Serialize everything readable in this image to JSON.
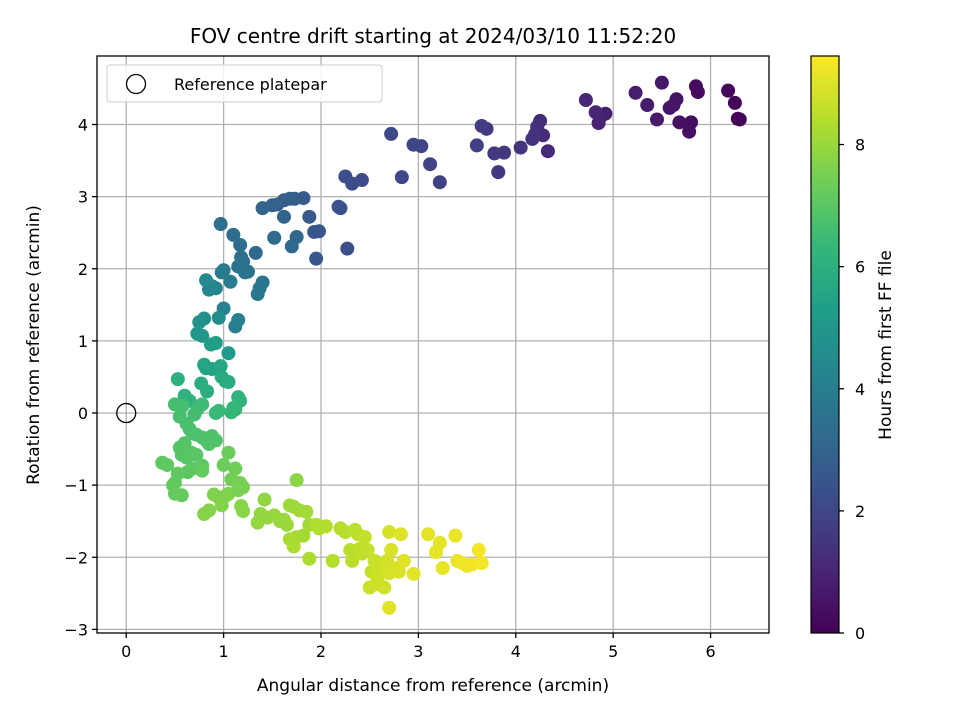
{
  "chart_data": {
    "type": "scatter",
    "title": "FOV centre drift starting at 2024/03/10 11:52:20",
    "xlabel": "Angular distance from reference (arcmin)",
    "ylabel": "Rotation from reference (arcmin)",
    "xlim": [
      -0.3,
      6.6
    ],
    "ylim": [
      -3.05,
      4.95
    ],
    "xticks": [
      0,
      1,
      2,
      3,
      4,
      5,
      6
    ],
    "yticks": [
      -3,
      -2,
      -1,
      0,
      1,
      2,
      3,
      4
    ],
    "grid": true,
    "legend": {
      "position": "top-left",
      "entries": [
        "Reference platepar"
      ]
    },
    "reference_point": {
      "x": 0,
      "y": 0,
      "label": "Reference platepar"
    },
    "colorbar": {
      "label": "Hours from first FF file",
      "min": 0,
      "max": 9.45,
      "ticks": [
        0,
        2,
        4,
        6,
        8
      ],
      "colormap": "viridis",
      "colors": [
        "#440154",
        "#482777",
        "#3e4989",
        "#31688e",
        "#26828e",
        "#1f9e89",
        "#35b779",
        "#6ece58",
        "#b5de2b",
        "#fde725"
      ]
    },
    "points": [
      {
        "x": 6.28,
        "y": 4.08,
        "t": 0.05
      },
      {
        "x": 6.3,
        "y": 4.07,
        "t": 0.1
      },
      {
        "x": 6.25,
        "y": 4.3,
        "t": 0.15
      },
      {
        "x": 6.18,
        "y": 4.47,
        "t": 0.2
      },
      {
        "x": 5.87,
        "y": 4.45,
        "t": 0.25
      },
      {
        "x": 5.85,
        "y": 4.53,
        "t": 0.3
      },
      {
        "x": 5.8,
        "y": 4.03,
        "t": 0.35
      },
      {
        "x": 5.78,
        "y": 3.9,
        "t": 0.4
      },
      {
        "x": 5.68,
        "y": 4.03,
        "t": 0.45
      },
      {
        "x": 5.65,
        "y": 4.35,
        "t": 0.5
      },
      {
        "x": 5.62,
        "y": 4.27,
        "t": 0.55
      },
      {
        "x": 5.58,
        "y": 4.23,
        "t": 0.6
      },
      {
        "x": 5.5,
        "y": 4.58,
        "t": 0.65
      },
      {
        "x": 5.45,
        "y": 4.07,
        "t": 0.7
      },
      {
        "x": 5.35,
        "y": 4.27,
        "t": 0.75
      },
      {
        "x": 5.23,
        "y": 4.44,
        "t": 0.8
      },
      {
        "x": 4.92,
        "y": 4.15,
        "t": 0.85
      },
      {
        "x": 4.88,
        "y": 4.12,
        "t": 0.9
      },
      {
        "x": 4.85,
        "y": 4.02,
        "t": 0.95
      },
      {
        "x": 4.82,
        "y": 4.17,
        "t": 1.0
      },
      {
        "x": 4.72,
        "y": 4.34,
        "t": 1.05
      },
      {
        "x": 4.33,
        "y": 3.63,
        "t": 1.15
      },
      {
        "x": 4.28,
        "y": 3.85,
        "t": 1.2
      },
      {
        "x": 4.25,
        "y": 4.05,
        "t": 1.25
      },
      {
        "x": 4.22,
        "y": 3.97,
        "t": 1.3
      },
      {
        "x": 4.2,
        "y": 3.87,
        "t": 1.35
      },
      {
        "x": 4.17,
        "y": 3.8,
        "t": 1.4
      },
      {
        "x": 4.05,
        "y": 3.68,
        "t": 1.45
      },
      {
        "x": 3.88,
        "y": 3.61,
        "t": 1.5
      },
      {
        "x": 3.82,
        "y": 3.34,
        "t": 1.55
      },
      {
        "x": 3.78,
        "y": 3.6,
        "t": 1.6
      },
      {
        "x": 3.7,
        "y": 3.94,
        "t": 1.65
      },
      {
        "x": 3.65,
        "y": 3.98,
        "t": 1.7
      },
      {
        "x": 3.6,
        "y": 3.71,
        "t": 1.75
      },
      {
        "x": 3.22,
        "y": 3.2,
        "t": 1.85
      },
      {
        "x": 3.12,
        "y": 3.45,
        "t": 1.9
      },
      {
        "x": 3.03,
        "y": 3.7,
        "t": 1.95
      },
      {
        "x": 2.95,
        "y": 3.72,
        "t": 2.0
      },
      {
        "x": 2.83,
        "y": 3.27,
        "t": 2.05
      },
      {
        "x": 2.72,
        "y": 3.87,
        "t": 2.1
      },
      {
        "x": 2.42,
        "y": 3.23,
        "t": 2.2
      },
      {
        "x": 2.32,
        "y": 3.18,
        "t": 2.25
      },
      {
        "x": 2.25,
        "y": 3.28,
        "t": 2.3
      },
      {
        "x": 2.27,
        "y": 2.28,
        "t": 2.35
      },
      {
        "x": 2.2,
        "y": 2.84,
        "t": 2.4
      },
      {
        "x": 2.18,
        "y": 2.86,
        "t": 2.45
      },
      {
        "x": 1.98,
        "y": 2.52,
        "t": 2.5
      },
      {
        "x": 1.93,
        "y": 2.51,
        "t": 2.55
      },
      {
        "x": 1.95,
        "y": 2.14,
        "t": 2.6
      },
      {
        "x": 1.88,
        "y": 2.72,
        "t": 2.65
      },
      {
        "x": 1.82,
        "y": 2.98,
        "t": 2.7
      },
      {
        "x": 1.73,
        "y": 2.97,
        "t": 2.75
      },
      {
        "x": 1.68,
        "y": 2.97,
        "t": 2.8
      },
      {
        "x": 1.62,
        "y": 2.95,
        "t": 2.85
      },
      {
        "x": 1.55,
        "y": 2.89,
        "t": 2.9
      },
      {
        "x": 1.5,
        "y": 2.88,
        "t": 2.95
      },
      {
        "x": 1.4,
        "y": 2.84,
        "t": 3.0
      },
      {
        "x": 1.62,
        "y": 2.72,
        "t": 3.05
      },
      {
        "x": 1.75,
        "y": 2.44,
        "t": 3.1
      },
      {
        "x": 1.7,
        "y": 2.31,
        "t": 3.15
      },
      {
        "x": 1.52,
        "y": 2.43,
        "t": 3.2
      },
      {
        "x": 1.33,
        "y": 2.22,
        "t": 3.25
      },
      {
        "x": 1.1,
        "y": 2.47,
        "t": 3.3
      },
      {
        "x": 1.17,
        "y": 2.33,
        "t": 3.35
      },
      {
        "x": 0.97,
        "y": 2.62,
        "t": 3.4
      },
      {
        "x": 1.18,
        "y": 2.16,
        "t": 3.45
      },
      {
        "x": 1.2,
        "y": 2.1,
        "t": 3.5
      },
      {
        "x": 1.25,
        "y": 1.96,
        "t": 3.55
      },
      {
        "x": 1.15,
        "y": 2.03,
        "t": 3.6
      },
      {
        "x": 1.22,
        "y": 1.95,
        "t": 3.65
      },
      {
        "x": 1.4,
        "y": 1.81,
        "t": 3.7
      },
      {
        "x": 1.37,
        "y": 1.73,
        "t": 3.75
      },
      {
        "x": 1.35,
        "y": 1.65,
        "t": 3.8
      },
      {
        "x": 1.0,
        "y": 1.98,
        "t": 3.85
      },
      {
        "x": 1.07,
        "y": 1.82,
        "t": 3.9
      },
      {
        "x": 0.98,
        "y": 1.95,
        "t": 3.95
      },
      {
        "x": 1.12,
        "y": 1.2,
        "t": 4.05
      },
      {
        "x": 1.15,
        "y": 1.29,
        "t": 4.1
      },
      {
        "x": 1.0,
        "y": 1.45,
        "t": 4.15
      },
      {
        "x": 0.92,
        "y": 1.73,
        "t": 4.3
      },
      {
        "x": 0.85,
        "y": 1.71,
        "t": 4.35
      },
      {
        "x": 0.88,
        "y": 1.76,
        "t": 4.4
      },
      {
        "x": 0.82,
        "y": 1.84,
        "t": 4.5
      },
      {
        "x": 0.95,
        "y": 1.32,
        "t": 4.6
      },
      {
        "x": 0.8,
        "y": 1.31,
        "t": 4.7
      },
      {
        "x": 0.75,
        "y": 1.26,
        "t": 4.8
      },
      {
        "x": 0.78,
        "y": 1.07,
        "t": 4.9
      },
      {
        "x": 0.73,
        "y": 1.1,
        "t": 5.0
      },
      {
        "x": 1.05,
        "y": 0.83,
        "t": 5.1
      },
      {
        "x": 0.92,
        "y": 0.97,
        "t": 5.2
      },
      {
        "x": 0.87,
        "y": 0.95,
        "t": 5.3
      },
      {
        "x": 0.88,
        "y": 0.61,
        "t": 5.4
      },
      {
        "x": 0.82,
        "y": 0.62,
        "t": 5.5
      },
      {
        "x": 0.8,
        "y": 0.67,
        "t": 5.55
      },
      {
        "x": 0.97,
        "y": 0.65,
        "t": 5.6
      },
      {
        "x": 1.02,
        "y": 0.44,
        "t": 5.7
      },
      {
        "x": 0.98,
        "y": 0.5,
        "t": 5.75
      },
      {
        "x": 1.05,
        "y": 0.43,
        "t": 5.8
      },
      {
        "x": 0.77,
        "y": 0.41,
        "t": 5.85
      },
      {
        "x": 0.83,
        "y": 0.3,
        "t": 5.9
      },
      {
        "x": 0.53,
        "y": 0.47,
        "t": 5.95
      },
      {
        "x": 0.6,
        "y": 0.24,
        "t": 6.0
      },
      {
        "x": 0.65,
        "y": 0.17,
        "t": 6.05
      },
      {
        "x": 1.15,
        "y": 0.22,
        "t": 6.1
      },
      {
        "x": 1.17,
        "y": 0.17,
        "t": 6.15
      },
      {
        "x": 1.12,
        "y": 0.05,
        "t": 6.2
      },
      {
        "x": 1.08,
        "y": 0.01,
        "t": 6.25
      },
      {
        "x": 1.1,
        "y": 0.07,
        "t": 6.3
      },
      {
        "x": 0.92,
        "y": 0.0,
        "t": 6.35
      },
      {
        "x": 0.95,
        "y": 0.03,
        "t": 6.4
      },
      {
        "x": 0.78,
        "y": 0.12,
        "t": 6.45
      },
      {
        "x": 0.73,
        "y": 0.05,
        "t": 6.5
      },
      {
        "x": 0.7,
        "y": -0.02,
        "t": 6.55
      },
      {
        "x": 0.58,
        "y": 0.1,
        "t": 6.6
      },
      {
        "x": 0.5,
        "y": 0.12,
        "t": 6.62
      },
      {
        "x": 0.55,
        "y": -0.05,
        "t": 6.65
      },
      {
        "x": 0.62,
        "y": -0.15,
        "t": 6.68
      },
      {
        "x": 0.65,
        "y": -0.22,
        "t": 6.7
      },
      {
        "x": 0.68,
        "y": -0.28,
        "t": 6.72
      },
      {
        "x": 0.72,
        "y": -0.3,
        "t": 6.74
      },
      {
        "x": 0.78,
        "y": -0.34,
        "t": 6.76
      },
      {
        "x": 0.82,
        "y": -0.38,
        "t": 6.78
      },
      {
        "x": 0.88,
        "y": -0.32,
        "t": 6.8
      },
      {
        "x": 0.92,
        "y": -0.38,
        "t": 6.82
      },
      {
        "x": 0.85,
        "y": -0.43,
        "t": 6.84
      },
      {
        "x": 0.6,
        "y": -0.42,
        "t": 6.86
      },
      {
        "x": 0.55,
        "y": -0.48,
        "t": 6.88
      },
      {
        "x": 0.57,
        "y": -0.58,
        "t": 6.9
      },
      {
        "x": 0.62,
        "y": -0.62,
        "t": 6.92
      },
      {
        "x": 0.67,
        "y": -0.55,
        "t": 6.94
      },
      {
        "x": 0.72,
        "y": -0.58,
        "t": 6.96
      },
      {
        "x": 0.78,
        "y": -0.73,
        "t": 6.98
      },
      {
        "x": 0.68,
        "y": -0.77,
        "t": 7.0
      },
      {
        "x": 0.63,
        "y": -0.82,
        "t": 7.02
      },
      {
        "x": 0.37,
        "y": -0.69,
        "t": 7.04
      },
      {
        "x": 0.42,
        "y": -0.72,
        "t": 7.06
      },
      {
        "x": 0.53,
        "y": -0.84,
        "t": 7.08
      },
      {
        "x": 0.5,
        "y": -0.97,
        "t": 7.1
      },
      {
        "x": 0.48,
        "y": -1.0,
        "t": 7.12
      },
      {
        "x": 0.5,
        "y": -1.12,
        "t": 7.14
      },
      {
        "x": 0.57,
        "y": -1.14,
        "t": 7.16
      },
      {
        "x": 0.78,
        "y": -0.8,
        "t": 7.2
      },
      {
        "x": 1.05,
        "y": -0.55,
        "t": 7.25
      },
      {
        "x": 1.0,
        "y": -0.72,
        "t": 7.3
      },
      {
        "x": 1.12,
        "y": -0.77,
        "t": 7.35
      },
      {
        "x": 1.08,
        "y": -0.92,
        "t": 7.4
      },
      {
        "x": 1.17,
        "y": -0.97,
        "t": 7.45
      },
      {
        "x": 1.2,
        "y": -1.03,
        "t": 7.5
      },
      {
        "x": 1.15,
        "y": -1.07,
        "t": 7.52
      },
      {
        "x": 1.05,
        "y": -1.12,
        "t": 7.55
      },
      {
        "x": 1.02,
        "y": -1.15,
        "t": 7.58
      },
      {
        "x": 0.95,
        "y": -1.17,
        "t": 7.6
      },
      {
        "x": 0.9,
        "y": -1.13,
        "t": 7.62
      },
      {
        "x": 0.98,
        "y": -1.28,
        "t": 7.65
      },
      {
        "x": 0.85,
        "y": -1.35,
        "t": 7.68
      },
      {
        "x": 0.8,
        "y": -1.4,
        "t": 7.7
      },
      {
        "x": 1.18,
        "y": -1.29,
        "t": 7.72
      },
      {
        "x": 1.2,
        "y": -1.36,
        "t": 7.75
      },
      {
        "x": 1.75,
        "y": -0.93,
        "t": 7.8
      },
      {
        "x": 1.42,
        "y": -1.2,
        "t": 7.85
      },
      {
        "x": 1.38,
        "y": -1.4,
        "t": 7.88
      },
      {
        "x": 1.45,
        "y": -1.45,
        "t": 7.9
      },
      {
        "x": 1.35,
        "y": -1.52,
        "t": 7.92
      },
      {
        "x": 1.52,
        "y": -1.42,
        "t": 7.95
      },
      {
        "x": 1.58,
        "y": -1.5,
        "t": 7.97
      },
      {
        "x": 1.62,
        "y": -1.48,
        "t": 8.0
      },
      {
        "x": 1.65,
        "y": -1.55,
        "t": 8.02
      },
      {
        "x": 1.68,
        "y": -1.28,
        "t": 8.05
      },
      {
        "x": 1.72,
        "y": -1.3,
        "t": 8.07
      },
      {
        "x": 1.78,
        "y": -1.35,
        "t": 8.1
      },
      {
        "x": 1.85,
        "y": -1.37,
        "t": 8.12
      },
      {
        "x": 1.88,
        "y": -1.55,
        "t": 8.15
      },
      {
        "x": 1.82,
        "y": -1.7,
        "t": 8.17
      },
      {
        "x": 1.75,
        "y": -1.72,
        "t": 8.2
      },
      {
        "x": 1.68,
        "y": -1.75,
        "t": 8.22
      },
      {
        "x": 1.72,
        "y": -1.85,
        "t": 8.25
      },
      {
        "x": 1.88,
        "y": -2.02,
        "t": 8.27
      },
      {
        "x": 1.95,
        "y": -1.55,
        "t": 8.3
      },
      {
        "x": 1.98,
        "y": -1.6,
        "t": 8.32
      },
      {
        "x": 2.05,
        "y": -1.57,
        "t": 8.35
      },
      {
        "x": 2.12,
        "y": -2.05,
        "t": 8.37
      },
      {
        "x": 2.2,
        "y": -1.6,
        "t": 8.4
      },
      {
        "x": 2.25,
        "y": -1.65,
        "t": 8.42
      },
      {
        "x": 2.3,
        "y": -1.9,
        "t": 8.45
      },
      {
        "x": 2.32,
        "y": -2.05,
        "t": 8.47
      },
      {
        "x": 2.35,
        "y": -1.62,
        "t": 8.5
      },
      {
        "x": 2.38,
        "y": -1.68,
        "t": 8.52
      },
      {
        "x": 2.4,
        "y": -1.88,
        "t": 8.55
      },
      {
        "x": 2.42,
        "y": -1.95,
        "t": 8.57
      },
      {
        "x": 2.45,
        "y": -1.72,
        "t": 8.6
      },
      {
        "x": 2.48,
        "y": -1.9,
        "t": 8.62
      },
      {
        "x": 2.52,
        "y": -2.2,
        "t": 8.65
      },
      {
        "x": 2.55,
        "y": -2.05,
        "t": 8.67
      },
      {
        "x": 2.5,
        "y": -2.42,
        "t": 8.7
      },
      {
        "x": 2.58,
        "y": -2.3,
        "t": 8.72
      },
      {
        "x": 2.6,
        "y": -2.38,
        "t": 8.75
      },
      {
        "x": 2.62,
        "y": -2.15,
        "t": 8.77
      },
      {
        "x": 2.65,
        "y": -2.42,
        "t": 8.8
      },
      {
        "x": 2.68,
        "y": -2.05,
        "t": 8.82
      },
      {
        "x": 2.7,
        "y": -2.22,
        "t": 8.85
      },
      {
        "x": 2.7,
        "y": -1.65,
        "t": 8.87
      },
      {
        "x": 2.72,
        "y": -1.9,
        "t": 8.9
      },
      {
        "x": 2.75,
        "y": -2.15,
        "t": 8.92
      },
      {
        "x": 2.8,
        "y": -2.2,
        "t": 8.95
      },
      {
        "x": 2.82,
        "y": -1.68,
        "t": 8.97
      },
      {
        "x": 2.85,
        "y": -2.05,
        "t": 9.0
      },
      {
        "x": 2.7,
        "y": -2.7,
        "t": 9.02
      },
      {
        "x": 2.95,
        "y": -2.23,
        "t": 9.05
      },
      {
        "x": 3.1,
        "y": -1.68,
        "t": 9.08
      },
      {
        "x": 3.18,
        "y": -1.93,
        "t": 9.1
      },
      {
        "x": 3.22,
        "y": -1.8,
        "t": 9.12
      },
      {
        "x": 3.25,
        "y": -2.15,
        "t": 9.15
      },
      {
        "x": 3.38,
        "y": -1.7,
        "t": 9.18
      },
      {
        "x": 3.4,
        "y": -2.05,
        "t": 9.2
      },
      {
        "x": 3.45,
        "y": -2.08,
        "t": 9.22
      },
      {
        "x": 3.5,
        "y": -2.12,
        "t": 9.25
      },
      {
        "x": 3.55,
        "y": -2.1,
        "t": 9.27
      },
      {
        "x": 3.62,
        "y": -1.9,
        "t": 9.3
      },
      {
        "x": 3.65,
        "y": -2.08,
        "t": 9.35
      }
    ]
  }
}
